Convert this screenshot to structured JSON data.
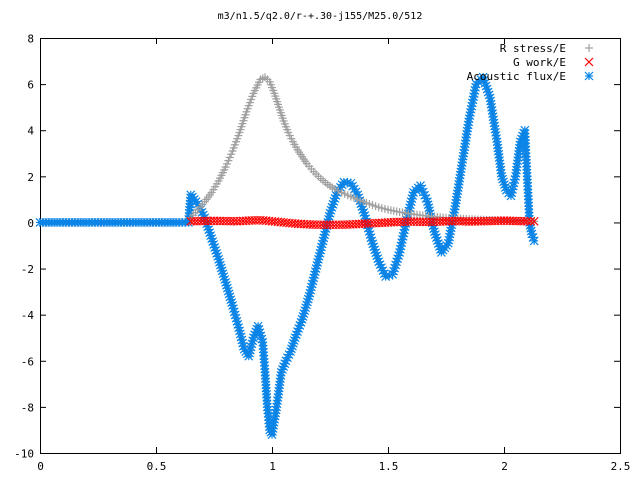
{
  "chart_data": {
    "type": "scatter",
    "title": "m3/n1.5/q2.0/r-+.30-j155/M25.0/512",
    "xlabel": "",
    "ylabel": "",
    "xlim": [
      0,
      2.5
    ],
    "ylim": [
      -10,
      8
    ],
    "x_ticks": [
      0,
      0.5,
      1,
      1.5,
      2,
      2.5
    ],
    "x_tick_labels": [
      "0",
      "0.5",
      "1",
      "1.5",
      "2",
      "2.5"
    ],
    "y_ticks": [
      -10,
      -8,
      -6,
      -4,
      -2,
      0,
      2,
      4,
      6,
      8
    ],
    "y_tick_labels": [
      "-10",
      "-8",
      "-6",
      "-4",
      "-2",
      "0",
      "2",
      "4",
      "6",
      "8"
    ],
    "grid": false,
    "legend_position": "top-right",
    "series": [
      {
        "name": "R stress/E",
        "marker": "plus",
        "color": "#a0a0a0",
        "x": [
          0.65,
          0.68,
          0.71,
          0.74,
          0.77,
          0.8,
          0.83,
          0.86,
          0.89,
          0.92,
          0.95,
          0.97,
          0.99,
          1.01,
          1.03,
          1.05,
          1.07,
          1.09,
          1.11,
          1.13,
          1.15,
          1.18,
          1.21,
          1.24,
          1.27,
          1.3,
          1.34,
          1.38,
          1.42,
          1.46,
          1.5,
          1.55,
          1.6,
          1.65,
          1.7,
          1.75,
          1.8,
          1.85,
          1.9,
          1.95,
          2.0,
          2.05,
          2.1,
          2.13
        ],
        "y": [
          0.2,
          0.55,
          0.9,
          1.3,
          1.8,
          2.4,
          3.1,
          3.9,
          4.8,
          5.6,
          6.2,
          6.3,
          6.1,
          5.6,
          5.0,
          4.4,
          3.9,
          3.5,
          3.15,
          2.85,
          2.55,
          2.2,
          1.9,
          1.65,
          1.45,
          1.3,
          1.12,
          0.95,
          0.8,
          0.66,
          0.55,
          0.45,
          0.37,
          0.3,
          0.25,
          0.2,
          0.17,
          0.14,
          0.12,
          0.1,
          0.08,
          0.07,
          0.06,
          0.05
        ]
      },
      {
        "name": "G work/E",
        "marker": "cross",
        "color": "#ff0000",
        "x": [
          0.65,
          0.7,
          0.75,
          0.8,
          0.85,
          0.9,
          0.95,
          1.0,
          1.05,
          1.1,
          1.15,
          1.2,
          1.25,
          1.3,
          1.35,
          1.4,
          1.45,
          1.5,
          1.55,
          1.6,
          1.65,
          1.7,
          1.75,
          1.8,
          1.85,
          1.9,
          1.95,
          2.0,
          2.05,
          2.1,
          2.13
        ],
        "y": [
          0.05,
          0.06,
          0.07,
          0.06,
          0.05,
          0.08,
          0.1,
          0.05,
          0.0,
          -0.05,
          -0.08,
          -0.1,
          -0.1,
          -0.1,
          -0.08,
          -0.05,
          -0.03,
          0.0,
          0.02,
          0.04,
          0.02,
          0.03,
          0.05,
          0.06,
          0.04,
          0.05,
          0.06,
          0.08,
          0.06,
          0.05,
          0.05
        ]
      },
      {
        "name": "Acoustic flux/E",
        "marker": "star",
        "color": "#0a84e6",
        "x": [
          0.0,
          0.05,
          0.1,
          0.15,
          0.2,
          0.25,
          0.3,
          0.35,
          0.4,
          0.45,
          0.5,
          0.55,
          0.6,
          0.64,
          0.65,
          0.68,
          0.71,
          0.74,
          0.77,
          0.8,
          0.83,
          0.86,
          0.88,
          0.9,
          0.92,
          0.94,
          0.96,
          0.97,
          0.98,
          0.99,
          1.0,
          1.02,
          1.04,
          1.06,
          1.08,
          1.1,
          1.13,
          1.16,
          1.19,
          1.22,
          1.25,
          1.28,
          1.31,
          1.34,
          1.37,
          1.4,
          1.43,
          1.46,
          1.49,
          1.52,
          1.55,
          1.58,
          1.61,
          1.64,
          1.67,
          1.7,
          1.73,
          1.76,
          1.79,
          1.82,
          1.85,
          1.88,
          1.91,
          1.94,
          1.97,
          1.99,
          2.01,
          2.03,
          2.05,
          2.07,
          2.09,
          2.1,
          2.11,
          2.12,
          2.13
        ],
        "y": [
          0,
          0,
          0,
          0,
          0,
          0,
          0,
          0,
          0,
          0,
          0,
          0,
          0,
          0,
          1.2,
          0.8,
          0.2,
          -0.7,
          -1.6,
          -2.6,
          -3.6,
          -4.7,
          -5.5,
          -5.8,
          -5.0,
          -4.5,
          -5.2,
          -6.5,
          -8.0,
          -9.0,
          -9.2,
          -8.0,
          -6.5,
          -6.0,
          -5.6,
          -5.0,
          -4.2,
          -3.2,
          -2.0,
          -0.8,
          0.4,
          1.3,
          1.75,
          1.7,
          1.2,
          0.3,
          -0.8,
          -1.7,
          -2.35,
          -2.25,
          -1.3,
          0.1,
          1.3,
          1.6,
          0.9,
          -0.4,
          -1.3,
          -0.9,
          0.7,
          2.6,
          4.5,
          6.0,
          6.3,
          5.4,
          3.5,
          2.0,
          1.4,
          1.15,
          2.0,
          3.5,
          4.0,
          2.0,
          0.0,
          -0.5,
          -0.8
        ]
      }
    ]
  }
}
